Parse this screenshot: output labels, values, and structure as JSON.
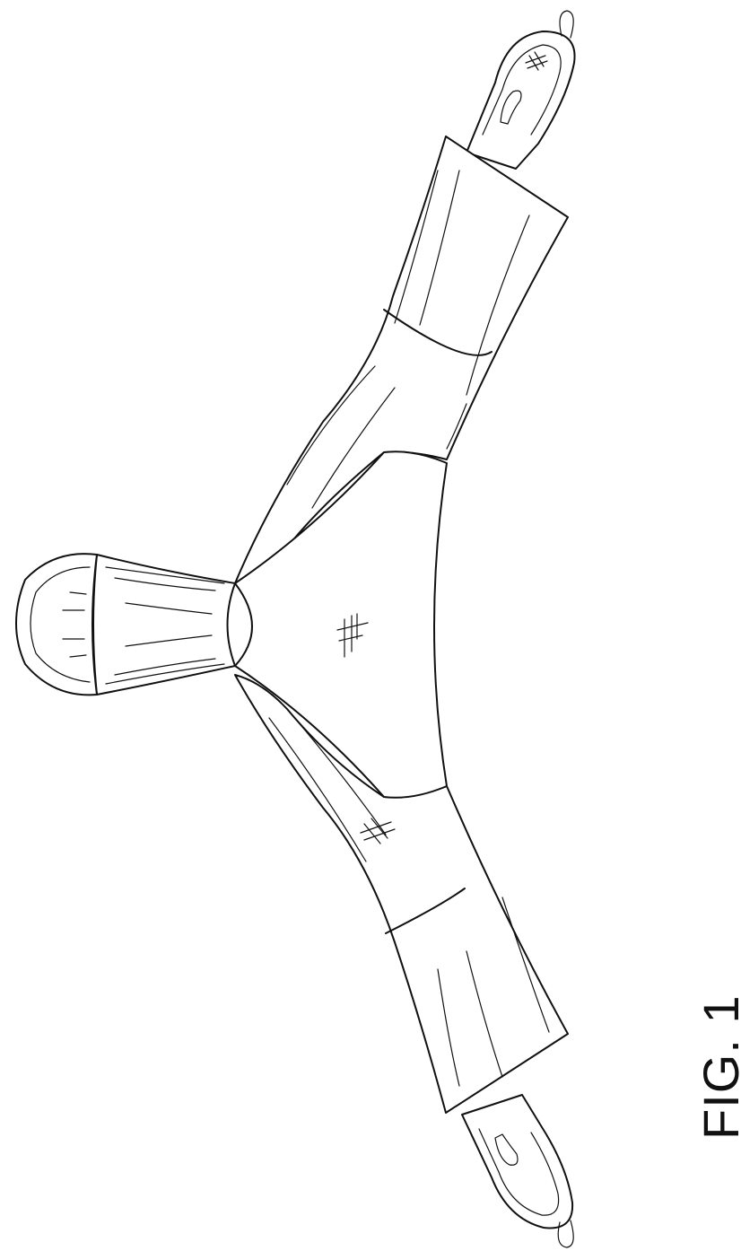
{
  "figure": {
    "label": "FIG. 1"
  }
}
